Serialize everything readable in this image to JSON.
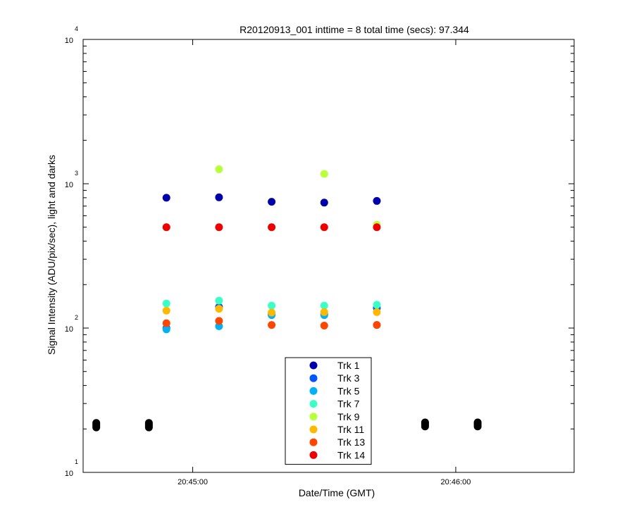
{
  "chart_data": {
    "type": "scatter",
    "title": "R20120913_001 inttime = 8 total time (secs): 97.344",
    "xlabel": "Date/Time (GMT)",
    "ylabel": "Signal Intensity (ADU/pix/sec), light and darks",
    "x_scale": "time",
    "x_range": [
      "20:44:35",
      "20:46:27"
    ],
    "x_ticks": [
      "20:45:00",
      "20:46:00"
    ],
    "y_scale": "log",
    "y_range": [
      10,
      10000
    ],
    "y_ticks": [
      {
        "base": "10",
        "exp": "1"
      },
      {
        "base": "10",
        "exp": "2"
      },
      {
        "base": "10",
        "exp": "3"
      },
      {
        "base": "10",
        "exp": "4"
      }
    ],
    "grid": false,
    "legend_position": "bottom-center",
    "light_times": [
      "20:44:54",
      "20:45:06",
      "20:45:18",
      "20:45:30",
      "20:45:42"
    ],
    "series": [
      {
        "name": "Trk 1",
        "color": "#0000AA",
        "values": [
          800,
          805,
          750,
          740,
          760
        ]
      },
      {
        "name": "Trk 3",
        "color": "#0055FF",
        "values": [
          100,
          140,
          125,
          125,
          138
        ]
      },
      {
        "name": "Trk 5",
        "color": "#00B2F5",
        "values": [
          98,
          103,
          123,
          123,
          105
        ]
      },
      {
        "name": "Trk 7",
        "color": "#3CFFC8",
        "values": [
          148,
          155,
          143,
          143,
          145
        ]
      },
      {
        "name": "Trk 9",
        "color": "#B8FF3C",
        "values": [
          500,
          1260,
          500,
          1170,
          520
        ]
      },
      {
        "name": "Trk 11",
        "color": "#FFB800",
        "values": [
          132,
          136,
          128,
          129,
          129
        ]
      },
      {
        "name": "Trk 13",
        "color": "#FF4600",
        "values": [
          108,
          112,
          105,
          104,
          105
        ]
      },
      {
        "name": "Trk 14",
        "color": "#EE0000",
        "values": [
          500,
          500,
          500,
          500,
          500
        ]
      }
    ],
    "darks": {
      "color": "#000000",
      "points": [
        {
          "x": "20:44:38",
          "y": [
            20.5,
            21.0,
            21.5,
            22.0
          ]
        },
        {
          "x": "20:44:50",
          "y": [
            20.5,
            21.0,
            21.5,
            22.0
          ]
        },
        {
          "x": "20:45:53",
          "y": [
            20.8,
            21.3,
            21.8,
            22.2
          ]
        },
        {
          "x": "20:46:05",
          "y": [
            20.8,
            21.3,
            21.8,
            22.2
          ]
        }
      ]
    }
  }
}
